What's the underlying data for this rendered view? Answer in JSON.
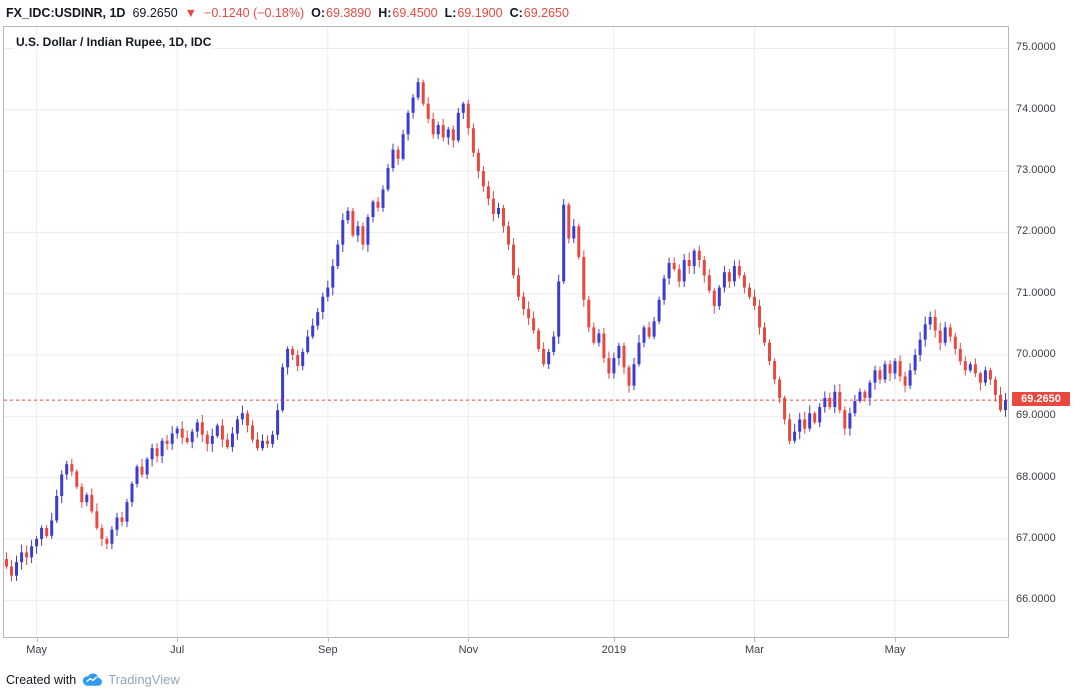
{
  "topbar": {
    "symbol": "FX_IDC:USDINR, 1D",
    "price": "69.2650",
    "direction_arrow": "▼",
    "change": "−0.1240 (−0.18%)",
    "ohlc": [
      {
        "label": "O:",
        "value": "69.3890"
      },
      {
        "label": "H:",
        "value": "69.4500"
      },
      {
        "label": "L:",
        "value": "69.1900"
      },
      {
        "label": "C:",
        "value": "69.2650"
      }
    ]
  },
  "legend": "U.S. Dollar / Indian Rupee, 1D, IDC",
  "footer": {
    "created_with": "Created with",
    "brand": "TradingView"
  },
  "colors": {
    "up_candle": "#3c3ccf",
    "down_candle": "#e8493f",
    "grid": "#ececf0",
    "axis_text": "#3a3e47",
    "price_line": "#e8493f",
    "price_label_bg": "#e8493f",
    "brand_blue": "#2f9bf0"
  },
  "chart_data": {
    "type": "candlestick",
    "title": "U.S. Dollar / Indian Rupee, 1D, IDC",
    "symbol": "FX_IDC:USDINR",
    "timeframe": "1D",
    "last_price": 69.265,
    "last_price_label": "69.2650",
    "ylim": [
      65.4,
      75.35
    ],
    "grid": true,
    "y_ticks": [
      {
        "value": 75,
        "label": "75.0000"
      },
      {
        "value": 74,
        "label": "74.0000"
      },
      {
        "value": 73,
        "label": "73.0000"
      },
      {
        "value": 72,
        "label": "72.0000"
      },
      {
        "value": 71,
        "label": "71.0000"
      },
      {
        "value": 70,
        "label": "70.0000"
      },
      {
        "value": 69,
        "label": "69.0000"
      },
      {
        "value": 68,
        "label": "68.0000"
      },
      {
        "value": 67,
        "label": "67.0000"
      },
      {
        "value": 66,
        "label": "66.0000"
      }
    ],
    "months": [
      {
        "label": "May",
        "index": 6
      },
      {
        "label": "Jul",
        "index": 34
      },
      {
        "label": "Sep",
        "index": 64
      },
      {
        "label": "Nov",
        "index": 92
      },
      {
        "label": "2019",
        "index": 121
      },
      {
        "label": "Mar",
        "index": 149
      },
      {
        "label": "May",
        "index": 177
      }
    ],
    "closes": [
      66.55,
      66.4,
      66.62,
      66.78,
      66.7,
      66.88,
      67.0,
      67.18,
      67.05,
      67.3,
      67.7,
      68.05,
      68.22,
      68.1,
      67.85,
      67.6,
      67.72,
      67.45,
      67.18,
      67.0,
      66.92,
      67.15,
      67.35,
      67.28,
      67.6,
      67.9,
      68.18,
      68.05,
      68.3,
      68.48,
      68.35,
      68.6,
      68.55,
      68.72,
      68.8,
      68.65,
      68.58,
      68.75,
      68.9,
      68.7,
      68.55,
      68.68,
      68.85,
      68.62,
      68.5,
      68.72,
      68.95,
      69.05,
      68.85,
      68.62,
      68.48,
      68.6,
      68.55,
      68.7,
      69.1,
      69.8,
      70.1,
      70.0,
      69.82,
      70.05,
      70.3,
      70.48,
      70.7,
      70.95,
      71.1,
      71.45,
      71.8,
      72.2,
      72.35,
      71.95,
      72.1,
      71.8,
      72.25,
      72.5,
      72.4,
      72.7,
      73.05,
      73.35,
      73.2,
      73.6,
      73.95,
      74.2,
      74.45,
      74.1,
      73.85,
      73.6,
      73.75,
      73.55,
      73.68,
      73.5,
      73.95,
      74.1,
      73.7,
      73.3,
      73.0,
      72.75,
      72.55,
      72.3,
      72.4,
      72.1,
      71.8,
      71.3,
      70.95,
      70.75,
      70.6,
      70.4,
      70.1,
      69.85,
      70.05,
      70.3,
      71.2,
      72.45,
      71.9,
      72.1,
      71.6,
      70.9,
      70.45,
      70.2,
      70.35,
      69.95,
      69.7,
      69.95,
      70.15,
      69.8,
      69.5,
      69.85,
      70.2,
      70.45,
      70.3,
      70.55,
      70.9,
      71.25,
      71.5,
      71.4,
      71.2,
      71.55,
      71.45,
      71.7,
      71.55,
      71.3,
      71.05,
      70.8,
      71.1,
      71.35,
      71.2,
      71.45,
      71.3,
      71.1,
      70.95,
      70.8,
      70.45,
      70.2,
      69.9,
      69.6,
      69.3,
      68.95,
      68.6,
      68.75,
      68.95,
      68.8,
      69.05,
      68.9,
      69.15,
      69.3,
      69.15,
      69.4,
      69.1,
      68.8,
      69.05,
      69.25,
      69.4,
      69.3,
      69.55,
      69.75,
      69.6,
      69.85,
      69.7,
      69.9,
      69.65,
      69.5,
      69.75,
      70.0,
      70.25,
      70.5,
      70.62,
      70.4,
      70.2,
      70.45,
      70.3,
      70.1,
      69.9,
      69.75,
      69.85,
      69.7,
      69.55,
      69.75,
      69.6,
      69.35,
      69.1,
      69.265
    ]
  }
}
